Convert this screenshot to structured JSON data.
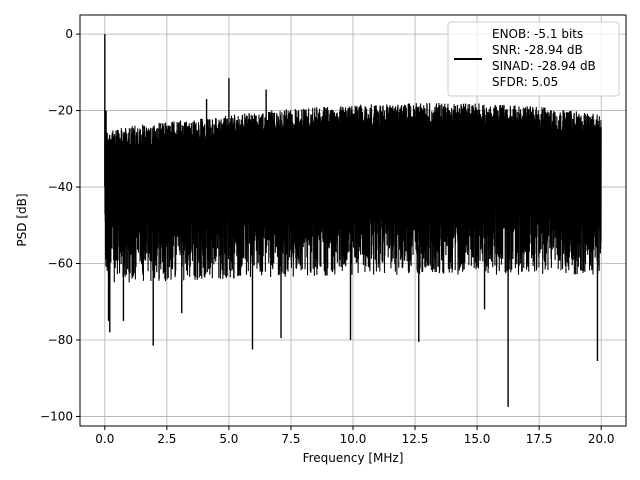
{
  "chart_data": {
    "type": "line",
    "title": "",
    "xlabel": "Frequency [MHz]",
    "ylabel": "PSD [dB]",
    "xlim": [
      -1.0,
      21.0
    ],
    "ylim": [
      -102.5,
      5.0
    ],
    "xticks": [
      0.0,
      2.5,
      5.0,
      7.5,
      10.0,
      12.5,
      15.0,
      17.5,
      20.0
    ],
    "xtick_labels": [
      "0.0",
      "2.5",
      "5.0",
      "7.5",
      "10.0",
      "12.5",
      "15.0",
      "17.5",
      "20.0"
    ],
    "yticks": [
      0,
      -20,
      -40,
      -60,
      -80,
      -100
    ],
    "ytick_labels": [
      "0",
      "−20",
      "−40",
      "−60",
      "−80",
      "−100"
    ],
    "grid": true,
    "legend_position": "top-right",
    "legend_lines": [
      "ENOB: -5.1 bits",
      "SNR: -28.94 dB",
      "SINAD: -28.94 dB",
      "SFDR: 5.05"
    ],
    "series": [
      {
        "color": "#000000",
        "noise_envelope": {
          "upper": [
            [
              0.0,
              -25
            ],
            [
              1.0,
              -24
            ],
            [
              2.5,
              -23
            ],
            [
              5.0,
              -21
            ],
            [
              7.5,
              -19.5
            ],
            [
              10.0,
              -18.5
            ],
            [
              12.5,
              -18
            ],
            [
              15.0,
              -18
            ],
            [
              17.5,
              -19
            ],
            [
              20.0,
              -21
            ]
          ],
          "lower": [
            [
              0.0,
              -65
            ],
            [
              1.0,
              -65
            ],
            [
              5.0,
              -64
            ],
            [
              10.0,
              -63
            ],
            [
              15.0,
              -63
            ],
            [
              20.0,
              -63
            ]
          ]
        },
        "peaks": [
          [
            0.0,
            0.0
          ],
          [
            0.05,
            -20
          ],
          [
            5.0,
            -11.5
          ],
          [
            6.5,
            -14.5
          ],
          [
            4.1,
            -17
          ]
        ],
        "dips": [
          [
            0.15,
            -75
          ],
          [
            0.2,
            -78
          ],
          [
            1.95,
            -81.5
          ],
          [
            5.95,
            -82.5
          ],
          [
            7.1,
            -79.5
          ],
          [
            9.9,
            -80
          ],
          [
            12.65,
            -80.5
          ],
          [
            16.25,
            -97.5
          ],
          [
            19.85,
            -85.5
          ],
          [
            0.75,
            -75
          ],
          [
            3.1,
            -73
          ],
          [
            15.3,
            -72
          ]
        ]
      }
    ]
  }
}
